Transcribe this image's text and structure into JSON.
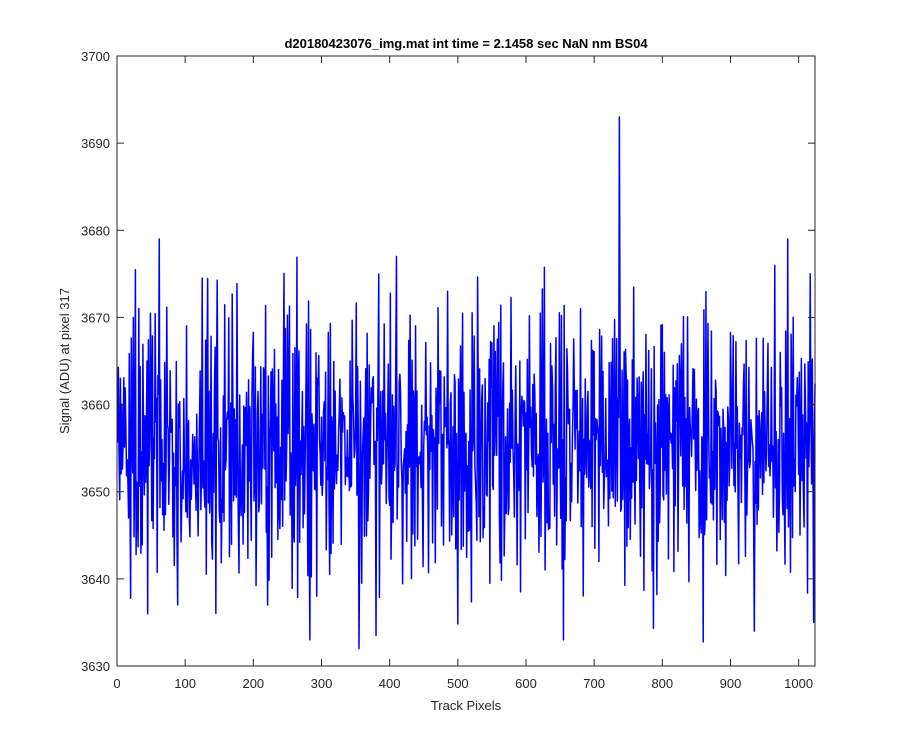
{
  "chart_data": {
    "type": "line",
    "title": "d20180423076_img.mat int time = 2.1458 sec  NaN nm BS04",
    "xlabel": "Track Pixels",
    "ylabel": "Signal (ADU) at pixel 317",
    "xlim": [
      0,
      1024
    ],
    "ylim": [
      3630,
      3700
    ],
    "xticks": [
      0,
      100,
      200,
      300,
      400,
      500,
      600,
      700,
      800,
      900,
      1000
    ],
    "yticks": [
      3630,
      3640,
      3650,
      3660,
      3670,
      3680,
      3690,
      3700
    ],
    "grid": false,
    "series": [
      {
        "color": "#0000ff",
        "x_start": 1,
        "x_step": 1,
        "count": 1024,
        "noise_center": 3655,
        "noise_range": [
          3632,
          3679
        ],
        "y": [
          3655,
          3664,
          3652,
          3656,
          3673,
          3647,
          3662,
          3650,
          3657,
          3669,
          3645,
          3660,
          3670,
          3651,
          3658,
          3655,
          3643,
          3664,
          3650,
          3636,
          3668,
          3648,
          3657,
          3679,
          3640,
          3659,
          3672,
          3646,
          3661,
          3653,
          3650,
          3666,
          3644,
          3657,
          3637,
          3664,
          3651,
          3673,
          3655,
          3641,
          3669,
          3649,
          3658,
          3666,
          3643,
          3661,
          3654,
          3647,
          3671,
          3656,
          3652,
          3665,
          3641,
          3659,
          3658,
          3670,
          3649,
          3655,
          3644,
          3662,
          3659,
          3655,
          3651,
          3667,
          3645,
          3660,
          3637,
          3663,
          3653,
          3670,
          3656,
          3642,
          3668,
          3650,
          3661,
          3655,
          3647,
          3664,
          3658,
          3671,
          3652,
          3648,
          3666,
          3641,
          3659,
          3655,
          3672,
          3650,
          3645,
          3668,
          3657,
          3653,
          3664,
          3649,
          3656,
          3661,
          3646,
          3669,
          3654,
          3658,
          3651,
          3663,
          3644,
          3660,
          3669,
          3655,
          3648,
          3662,
          3657,
          3652,
          3666,
          3643,
          3659,
          3654,
          3661,
          3650,
          3667,
          3656,
          3645,
          3663
        ],
        "spikes": [
          {
            "x": 62,
            "y": 3679
          },
          {
            "x": 45,
            "y": 3636
          },
          {
            "x": 89,
            "y": 3637
          },
          {
            "x": 221,
            "y": 3637
          },
          {
            "x": 283,
            "y": 3633
          },
          {
            "x": 355,
            "y": 3632
          },
          {
            "x": 410,
            "y": 3677
          },
          {
            "x": 655,
            "y": 3633
          },
          {
            "x": 737,
            "y": 3693
          },
          {
            "x": 935,
            "y": 3634
          },
          {
            "x": 1017,
            "y": 3675
          },
          {
            "x": 1022,
            "y": 3635
          }
        ]
      }
    ]
  }
}
